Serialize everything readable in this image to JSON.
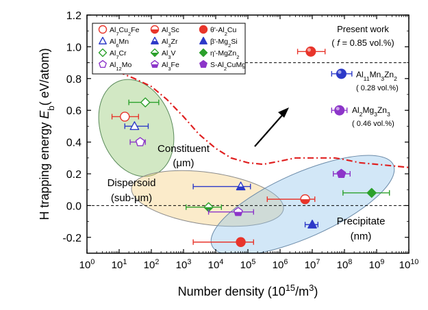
{
  "chart_data": {
    "type": "scatter",
    "xscale": "log",
    "xlim": [
      1,
      10000000000.0
    ],
    "ylim": [
      -0.3,
      1.2
    ],
    "xlabel": "Number density (10^15/m^3)",
    "xlabel_parts": [
      "Number density (10",
      "15",
      "/m",
      "3",
      ")"
    ],
    "ylabel_parts": [
      "H trapping energy  ",
      "E",
      "b",
      "( eV/atom)"
    ],
    "x_ticks": [
      {
        "base": "10",
        "exp": "0",
        "v": 1
      },
      {
        "base": "10",
        "exp": "1",
        "v": 10
      },
      {
        "base": "10",
        "exp": "2",
        "v": 100
      },
      {
        "base": "10",
        "exp": "3",
        "v": 1000
      },
      {
        "base": "10",
        "exp": "4",
        "v": 10000
      },
      {
        "base": "10",
        "exp": "5",
        "v": 100000
      },
      {
        "base": "10",
        "exp": "6",
        "v": 1000000
      },
      {
        "base": "10",
        "exp": "7",
        "v": 10000000
      },
      {
        "base": "10",
        "exp": "8",
        "v": 100000000
      },
      {
        "base": "10",
        "exp": "9",
        "v": 1000000000
      },
      {
        "base": "10",
        "exp": "10",
        "v": 10000000000
      }
    ],
    "y_ticks": [
      {
        "label": "1.2",
        "v": 1.2
      },
      {
        "label": "1.0",
        "v": 1.0
      },
      {
        "label": "0.8",
        "v": 0.8
      },
      {
        "label": "0.6",
        "v": 0.6
      },
      {
        "label": "0.4",
        "v": 0.4
      },
      {
        "label": "0.2",
        "v": 0.2
      },
      {
        "label": "0.0",
        "v": 0.0
      },
      {
        "label": "-0.2",
        "v": -0.2
      }
    ],
    "reference_lines": [
      0.9,
      0.0
    ],
    "series": [
      {
        "name_parts": [
          [
            "Al",
            ""
          ],
          [
            "7",
            "sub"
          ],
          [
            "Cu",
            ""
          ],
          [
            "2",
            "sub"
          ],
          [
            "Fe",
            ""
          ]
        ],
        "marker": "circle-open",
        "color": "#e8352b",
        "points": [
          {
            "x": 15,
            "y": 0.56,
            "xerr": [
              6,
              40
            ]
          }
        ]
      },
      {
        "name_parts": [
          [
            "Al",
            ""
          ],
          [
            "6",
            "sub"
          ],
          [
            "Mn",
            ""
          ]
        ],
        "marker": "triangle-open",
        "color": "#2c39c8",
        "points": [
          {
            "x": 30,
            "y": 0.5,
            "xerr": [
              15,
              80
            ]
          }
        ]
      },
      {
        "name_parts": [
          [
            "Al",
            ""
          ],
          [
            "7",
            "sub"
          ],
          [
            "Cr",
            ""
          ]
        ],
        "marker": "diamond-open",
        "color": "#2ba02b",
        "points": [
          {
            "x": 65,
            "y": 0.65,
            "xerr": [
              20,
              170
            ]
          }
        ]
      },
      {
        "name_parts": [
          [
            "Al",
            ""
          ],
          [
            "12",
            "sub"
          ],
          [
            "Mo",
            ""
          ]
        ],
        "marker": "pentagon-open",
        "color": "#8c35c9",
        "points": [
          {
            "x": 45,
            "y": 0.4,
            "xerr": [
              22,
              65
            ]
          }
        ]
      },
      {
        "name_parts": [
          [
            "Al",
            ""
          ],
          [
            "3",
            "sub"
          ],
          [
            "Sc",
            ""
          ]
        ],
        "marker": "circle-half",
        "color": "#e8352b",
        "points": [
          {
            "x": 6000000,
            "y": 0.04,
            "xerr": [
              400000,
              12000000
            ]
          }
        ]
      },
      {
        "name_parts": [
          [
            "Al",
            ""
          ],
          [
            "3",
            "sub"
          ],
          [
            "Zr",
            ""
          ]
        ],
        "marker": "triangle-half",
        "color": "#2c39c8",
        "points": [
          {
            "x": 60000,
            "y": 0.12,
            "xerr": [
              2000,
              120000
            ]
          }
        ]
      },
      {
        "name_parts": [
          [
            "Al",
            ""
          ],
          [
            "3",
            "sub"
          ],
          [
            "V",
            ""
          ]
        ],
        "marker": "diamond-half",
        "color": "#2ba02b",
        "points": [
          {
            "x": 6000,
            "y": -0.01,
            "xerr": [
              1200,
              15000
            ]
          }
        ]
      },
      {
        "name_parts": [
          [
            "Al",
            ""
          ],
          [
            "3",
            "sub"
          ],
          [
            "Fe",
            ""
          ]
        ],
        "marker": "pentagon-half",
        "color": "#8c35c9",
        "points": [
          {
            "x": 50000,
            "y": -0.04,
            "xerr": [
              6000,
              150000
            ]
          }
        ]
      },
      {
        "name_parts": [
          [
            "θ'-Al",
            ""
          ],
          [
            "2",
            "sub"
          ],
          [
            "Cu",
            ""
          ]
        ],
        "marker": "circle-filled",
        "color": "#e8352b",
        "points": [
          {
            "x": 60000,
            "y": -0.23,
            "xerr": [
              2000,
              150000
            ]
          }
        ]
      },
      {
        "name_parts": [
          [
            "β'-Mg",
            ""
          ],
          [
            "2",
            "sub"
          ],
          [
            "Si",
            ""
          ]
        ],
        "marker": "triangle-filled",
        "color": "#2c39c8",
        "points": [
          {
            "x": 10000000,
            "y": -0.12,
            "xerr": [
              6000000,
              15000000
            ]
          }
        ]
      },
      {
        "name_parts": [
          [
            "η'-MgZn",
            ""
          ],
          [
            "2",
            "sub"
          ]
        ],
        "marker": "diamond-filled",
        "color": "#2ba02b",
        "points": [
          {
            "x": 700000000,
            "y": 0.08,
            "xerr": [
              90000000,
              2500000000
            ]
          }
        ]
      },
      {
        "name_parts": [
          [
            "S-Al",
            ""
          ],
          [
            "2",
            "sub"
          ],
          [
            "CuMg",
            ""
          ]
        ],
        "marker": "pentagon-filled",
        "color": "#8c35c9",
        "points": [
          {
            "x": 80000000,
            "y": 0.2,
            "xerr": [
              45000000,
              150000000
            ]
          }
        ]
      }
    ],
    "present_work": [
      {
        "label_parts": [
          [
            "Al",
            ""
          ],
          [
            "11",
            "sub"
          ],
          [
            "Mn",
            ""
          ],
          [
            "3",
            "sub"
          ],
          [
            "Zn",
            ""
          ],
          [
            "2",
            "sub"
          ]
        ],
        "note": "( 0.28 vol.%)",
        "color": "#2c39c8",
        "x": 80000000,
        "y": 0.83,
        "xerr": [
          40000000,
          170000000
        ]
      },
      {
        "label_parts": [
          [
            "Al",
            ""
          ],
          [
            "2",
            "sub"
          ],
          [
            "Mg",
            ""
          ],
          [
            "3",
            "sub"
          ],
          [
            "Zn",
            ""
          ],
          [
            "3",
            "sub"
          ]
        ],
        "note": "( 0.46 vol.%)",
        "color": "#8c35c9",
        "x": 70000000,
        "y": 0.6,
        "xerr": [
          40000000,
          120000000
        ]
      },
      {
        "label_parts": [],
        "note": "",
        "color": "#e8352b",
        "x": 9000000,
        "y": 0.97,
        "xerr": [
          3500000,
          25000000
        ]
      }
    ],
    "present_work_title": "Present work",
    "present_work_fraction_parts": [
      [
        "( ",
        ""
      ],
      [
        "f",
        "i"
      ],
      [
        " = 0.85 vol.%)",
        ""
      ]
    ],
    "regions": [
      {
        "name": "constituent",
        "label_lines": [
          "Constituent",
          "(μm)"
        ],
        "color": "#9ccc7c"
      },
      {
        "name": "dispersoid",
        "label_lines": [
          "Dispersoid",
          "(sub-μm)"
        ],
        "color": "#f6d28a"
      },
      {
        "name": "precipitate",
        "label_lines": [
          "Precipitate",
          "(nm)"
        ],
        "color": "#8fc3ea"
      }
    ],
    "trend_curve": {
      "color": "#e02020",
      "points": [
        [
          1.5,
          0.85
        ],
        [
          10,
          0.84
        ],
        [
          30,
          0.8
        ],
        [
          100,
          0.75
        ],
        [
          300,
          0.67
        ],
        [
          1000,
          0.56
        ],
        [
          3000,
          0.45
        ],
        [
          10000,
          0.36
        ],
        [
          30000,
          0.3
        ],
        [
          100000,
          0.27
        ],
        [
          300000,
          0.26
        ],
        [
          1000000,
          0.28
        ],
        [
          3000000,
          0.3
        ],
        [
          10000000,
          0.3
        ],
        [
          50000000,
          0.3
        ],
        [
          100000000,
          0.29
        ],
        [
          300000000,
          0.27
        ],
        [
          1000000000,
          0.26
        ],
        [
          10000000000,
          0.24
        ]
      ]
    }
  }
}
